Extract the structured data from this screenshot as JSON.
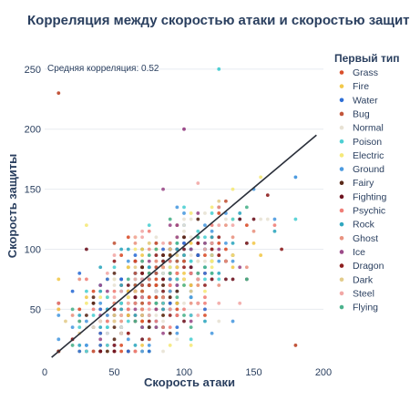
{
  "chart_data": {
    "type": "scatter",
    "title": "Корреляция между скоростью атаки и скоростью защиты",
    "xlabel": "Скорость атаки",
    "ylabel": "Скорость защиты",
    "xlim": [
      0,
      200
    ],
    "ylim": [
      4,
      262
    ],
    "x_ticks": [
      0,
      50,
      100,
      150,
      200
    ],
    "y_ticks": [
      50,
      100,
      150,
      200,
      250
    ],
    "grid": "horizontal",
    "legend_title": "Первый тип",
    "legend_position": "right",
    "annotation": "Средняя корреляция: 0.52",
    "trendline": {
      "x": [
        5,
        195
      ],
      "y": [
        10,
        195
      ]
    },
    "series": [
      {
        "name": "Grass",
        "color": "#d94f2b"
      },
      {
        "name": "Fire",
        "color": "#f2c94c"
      },
      {
        "name": "Water",
        "color": "#2f6fd6"
      },
      {
        "name": "Bug",
        "color": "#c2553a"
      },
      {
        "name": "Normal",
        "color": "#e8e2d4"
      },
      {
        "name": "Poison",
        "color": "#4ecfd3"
      },
      {
        "name": "Electric",
        "color": "#f5e97a"
      },
      {
        "name": "Ground",
        "color": "#4d9be0"
      },
      {
        "name": "Fairy",
        "color": "#5a2a1a"
      },
      {
        "name": "Fighting",
        "color": "#6e1420"
      },
      {
        "name": "Psychic",
        "color": "#f07f78"
      },
      {
        "name": "Rock",
        "color": "#30a7bf"
      },
      {
        "name": "Ghost",
        "color": "#e99381"
      },
      {
        "name": "Ice",
        "color": "#9c4b8a"
      },
      {
        "name": "Dragon",
        "color": "#8e1f1f"
      },
      {
        "name": "Dark",
        "color": "#e3cc8c"
      },
      {
        "name": "Steel",
        "color": "#f2a8a6"
      },
      {
        "name": "Flying",
        "color": "#4bb28c"
      }
    ],
    "highlighted_points": [
      {
        "x": 125,
        "y": 250,
        "series": "Poison"
      },
      {
        "x": 10,
        "y": 230,
        "series": "Bug"
      },
      {
        "x": 100,
        "y": 200,
        "series": "Ice"
      },
      {
        "x": 180,
        "y": 160,
        "series": "Ground"
      },
      {
        "x": 180,
        "y": 20,
        "series": "Bug"
      }
    ]
  }
}
